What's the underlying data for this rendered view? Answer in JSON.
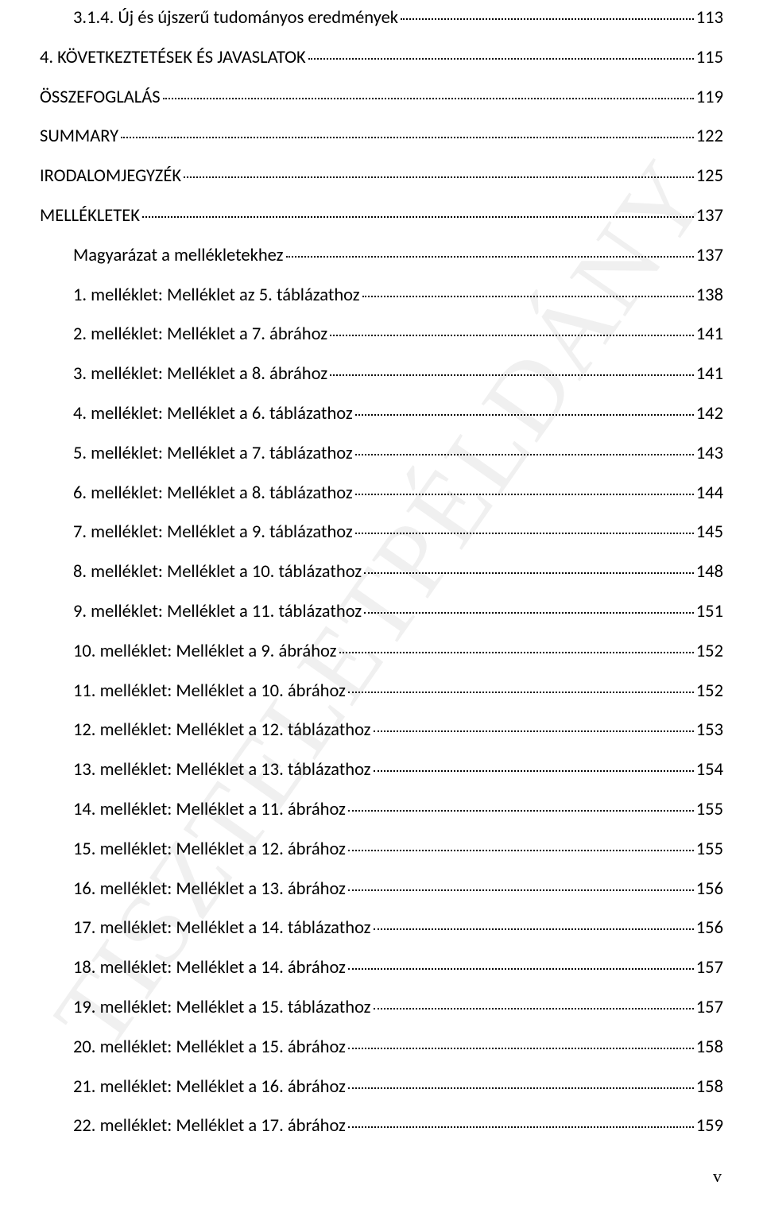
{
  "watermark": "TISZTELETPÉLDÁNY",
  "page_number": "v",
  "entries": [
    {
      "label": "3.1.4. Új és újszerű tudományos eredmények",
      "page": "113",
      "indent": true
    },
    {
      "label": "4. KÖVETKEZTETÉSEK ÉS JAVASLATOK",
      "page": "115",
      "indent": false
    },
    {
      "label": "ÖSSZEFOGLALÁS",
      "page": "119",
      "indent": false
    },
    {
      "label": "SUMMARY",
      "page": "122",
      "indent": false
    },
    {
      "label": "IRODALOMJEGYZÉK",
      "page": "125",
      "indent": false
    },
    {
      "label": "MELLÉKLETEK",
      "page": "137",
      "indent": false
    },
    {
      "label": "Magyarázat a mellékletekhez",
      "page": "137",
      "indent": true
    },
    {
      "label": "1. melléklet: Melléklet az 5. táblázathoz",
      "page": "138",
      "indent": true
    },
    {
      "label": "2. melléklet: Melléklet a 7. ábrához",
      "page": "141",
      "indent": true
    },
    {
      "label": "3. melléklet: Melléklet a 8. ábrához",
      "page": "141",
      "indent": true
    },
    {
      "label": "4. melléklet: Melléklet a 6. táblázathoz",
      "page": "142",
      "indent": true
    },
    {
      "label": "5. melléklet: Melléklet a 7. táblázathoz",
      "page": "143",
      "indent": true
    },
    {
      "label": "6. melléklet: Melléklet a 8. táblázathoz",
      "page": "144",
      "indent": true
    },
    {
      "label": "7. melléklet: Melléklet a 9. táblázathoz",
      "page": "145",
      "indent": true
    },
    {
      "label": "8. melléklet: Melléklet a 10. táblázathoz",
      "page": "148",
      "indent": true
    },
    {
      "label": "9. melléklet: Melléklet a 11. táblázathoz",
      "page": "151",
      "indent": true
    },
    {
      "label": "10. melléklet: Melléklet a 9. ábrához",
      "page": "152",
      "indent": true
    },
    {
      "label": "11. melléklet: Melléklet a 10. ábrához",
      "page": "152",
      "indent": true
    },
    {
      "label": "12. melléklet: Melléklet a 12. táblázathoz",
      "page": "153",
      "indent": true
    },
    {
      "label": "13. melléklet: Melléklet a 13. táblázathoz",
      "page": "154",
      "indent": true
    },
    {
      "label": "14. melléklet: Melléklet a 11. ábrához",
      "page": "155",
      "indent": true
    },
    {
      "label": "15. melléklet: Melléklet a 12. ábrához",
      "page": "155",
      "indent": true
    },
    {
      "label": "16. melléklet: Melléklet a 13. ábrához",
      "page": "156",
      "indent": true
    },
    {
      "label": "17. melléklet: Melléklet a 14. táblázathoz",
      "page": "156",
      "indent": true
    },
    {
      "label": "18. melléklet: Melléklet a 14. ábrához",
      "page": "157",
      "indent": true
    },
    {
      "label": "19. melléklet: Melléklet a 15. táblázathoz",
      "page": "157",
      "indent": true
    },
    {
      "label": "20. melléklet: Melléklet a 15. ábrához",
      "page": "158",
      "indent": true
    },
    {
      "label": "21. melléklet: Melléklet a 16. ábrához",
      "page": "158",
      "indent": true
    },
    {
      "label": "22. melléklet: Melléklet a 17. ábrához",
      "page": "159",
      "indent": true
    }
  ]
}
